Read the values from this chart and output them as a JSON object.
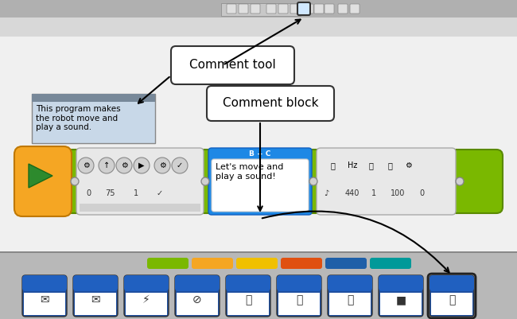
{
  "bg_color": "#e8e8e8",
  "canvas_color": "#ffffff",
  "toolbar_color": "#d0d0d0",
  "bottom_panel_color": "#c8c8c8",
  "comment_tool_label": "Comment tool",
  "comment_block_label": "Comment block",
  "comment_text": "This program makes\nthe robot move and\nplay a sound.",
  "comment_block_text": "Let's move and\nplay a sound!",
  "program_bar_color": "#7ab800",
  "blue_tab_color": "#1e88e5",
  "orange_block_color": "#f5a623",
  "bottom_tabs": [
    "#7ab800",
    "#f5a623",
    "#f0c000",
    "#e05010",
    "#1e5fa8",
    "#009999"
  ],
  "block_icons_count": 9,
  "sound_params": [
    "Hz",
    "440",
    "1",
    "100",
    "0"
  ],
  "move_params": [
    "0",
    "75",
    "1"
  ],
  "title": ""
}
